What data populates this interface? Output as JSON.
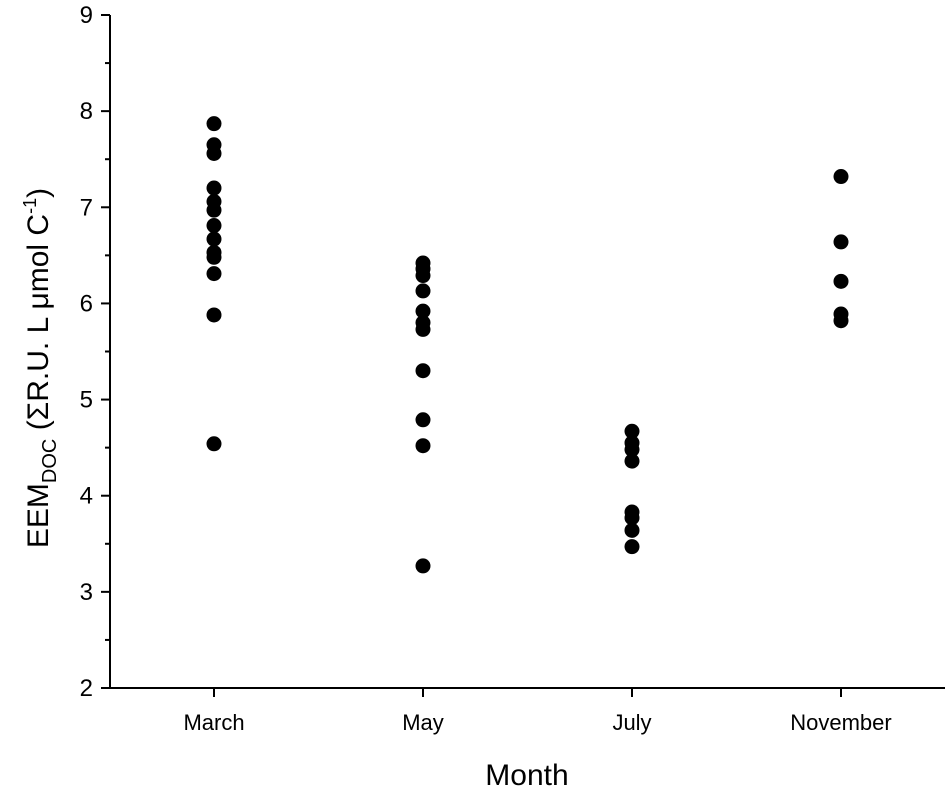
{
  "chart_data": {
    "type": "scatter",
    "title": "",
    "xlabel": "Month",
    "ylabel": {
      "main": "EEM",
      "sub": "DOC",
      "rest": " (ΣR.U. L μmol C",
      "sup": "-1",
      "close": ")"
    },
    "categories": [
      "March",
      "May",
      "July",
      "November"
    ],
    "ylim": [
      2,
      9
    ],
    "yticks": [
      "2",
      "3",
      "4",
      "5",
      "6",
      "7",
      "8",
      "9"
    ],
    "grid": false,
    "legend": "none",
    "marker_color": "#000000",
    "series": [
      {
        "points": [
          {
            "x": "March",
            "y": 7.87
          },
          {
            "x": "March",
            "y": 7.65
          },
          {
            "x": "March",
            "y": 7.56
          },
          {
            "x": "March",
            "y": 7.2
          },
          {
            "x": "March",
            "y": 7.06
          },
          {
            "x": "March",
            "y": 6.97
          },
          {
            "x": "March",
            "y": 6.81
          },
          {
            "x": "March",
            "y": 6.67
          },
          {
            "x": "March",
            "y": 6.53
          },
          {
            "x": "March",
            "y": 6.48
          },
          {
            "x": "March",
            "y": 6.31
          },
          {
            "x": "March",
            "y": 5.88
          },
          {
            "x": "March",
            "y": 4.54
          },
          {
            "x": "May",
            "y": 6.42
          },
          {
            "x": "May",
            "y": 6.36
          },
          {
            "x": "May",
            "y": 6.29
          },
          {
            "x": "May",
            "y": 6.13
          },
          {
            "x": "May",
            "y": 5.92
          },
          {
            "x": "May",
            "y": 5.8
          },
          {
            "x": "May",
            "y": 5.73
          },
          {
            "x": "May",
            "y": 5.3
          },
          {
            "x": "May",
            "y": 4.79
          },
          {
            "x": "May",
            "y": 4.52
          },
          {
            "x": "May",
            "y": 3.27
          },
          {
            "x": "July",
            "y": 4.67
          },
          {
            "x": "July",
            "y": 4.55
          },
          {
            "x": "July",
            "y": 4.48
          },
          {
            "x": "July",
            "y": 4.36
          },
          {
            "x": "July",
            "y": 3.83
          },
          {
            "x": "July",
            "y": 3.77
          },
          {
            "x": "July",
            "y": 3.64
          },
          {
            "x": "July",
            "y": 3.47
          },
          {
            "x": "November",
            "y": 7.32
          },
          {
            "x": "November",
            "y": 6.64
          },
          {
            "x": "November",
            "y": 6.23
          },
          {
            "x": "November",
            "y": 5.89
          },
          {
            "x": "November",
            "y": 5.82
          }
        ]
      }
    ]
  }
}
